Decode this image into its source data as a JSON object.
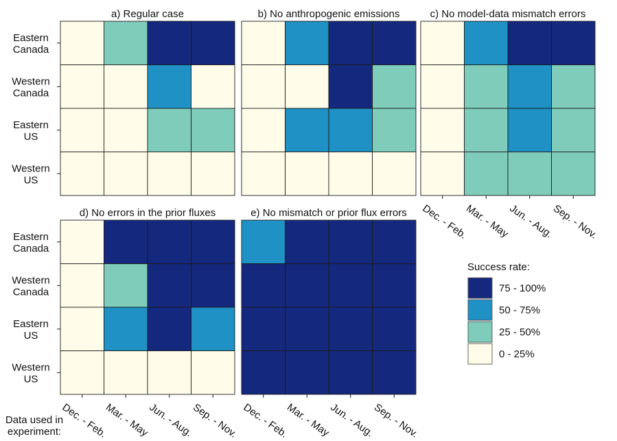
{
  "chart_data": {
    "type": "heatmap",
    "row_labels": [
      [
        "Eastern",
        "Canada"
      ],
      [
        "Western",
        "Canada"
      ],
      [
        "Eastern",
        "US"
      ],
      [
        "Western",
        "US"
      ]
    ],
    "column_labels": [
      "Dec. - Feb.",
      "Mar. - May",
      "Jun. - Aug.",
      "Sep. - Nov."
    ],
    "x_title": [
      "Data used in",
      "experiment:"
    ],
    "legend": {
      "title": "Success rate:",
      "position": "right",
      "levels": [
        {
          "label": "75 - 100%",
          "color": "#14287e"
        },
        {
          "label": "50 - 75%",
          "color": "#1f91c4"
        },
        {
          "label": "25 - 50%",
          "color": "#7fccba"
        },
        {
          "label": "0   - 25%",
          "color": "#fffdea"
        }
      ]
    },
    "panels": [
      {
        "title": "a) Regular case",
        "levels": [
          [
            0,
            1,
            3,
            3
          ],
          [
            0,
            0,
            2,
            0
          ],
          [
            0,
            0,
            1,
            1
          ],
          [
            0,
            0,
            0,
            0
          ]
        ]
      },
      {
        "title": "b) No anthropogenic emissions",
        "levels": [
          [
            0,
            2,
            3,
            3
          ],
          [
            0,
            0,
            3,
            1
          ],
          [
            0,
            2,
            2,
            1
          ],
          [
            0,
            0,
            0,
            0
          ]
        ]
      },
      {
        "title": "c) No model-data mismatch errors",
        "levels": [
          [
            0,
            2,
            3,
            3
          ],
          [
            0,
            1,
            2,
            1
          ],
          [
            0,
            1,
            2,
            1
          ],
          [
            0,
            1,
            1,
            1
          ]
        ]
      },
      {
        "title": "d) No errors in the prior fluxes",
        "levels": [
          [
            0,
            3,
            3,
            3
          ],
          [
            0,
            1,
            3,
            3
          ],
          [
            0,
            2,
            3,
            2
          ],
          [
            0,
            0,
            0,
            0
          ]
        ]
      },
      {
        "title": "e) No mismatch or prior flux errors",
        "levels": [
          [
            2,
            3,
            3,
            3
          ],
          [
            3,
            3,
            3,
            3
          ],
          [
            3,
            3,
            3,
            3
          ],
          [
            3,
            3,
            3,
            3
          ]
        ]
      }
    ],
    "level_colors": [
      "#fffdea",
      "#7fccba",
      "#1f91c4",
      "#14287e"
    ]
  }
}
